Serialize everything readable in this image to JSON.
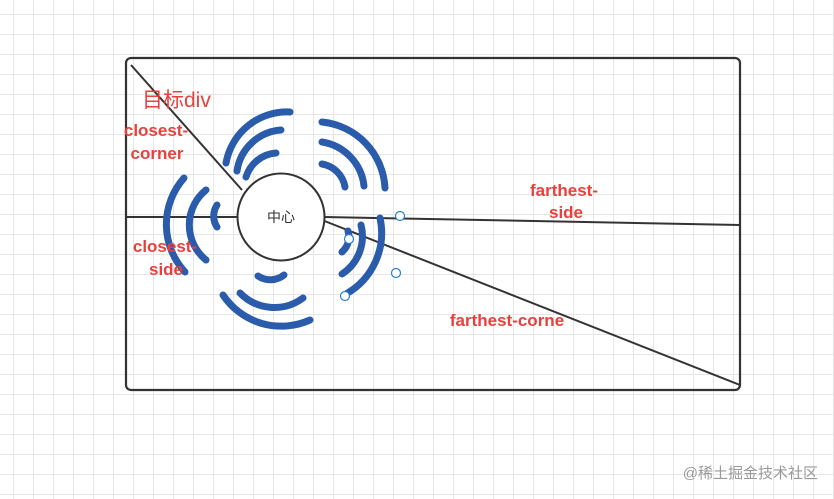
{
  "diagram": {
    "title": "目标div",
    "center_label": "中心",
    "labels": {
      "closest_corner": [
        "closest-",
        "corner"
      ],
      "closest_side": [
        "closest-",
        "side"
      ],
      "farthest_side": [
        "farthest-",
        "side"
      ],
      "farthest_corner": "farthest-corne"
    }
  },
  "watermark": "@稀土掘金技术社区",
  "colors": {
    "label": "#e8413d",
    "wave": "#2a5cab",
    "line": "#333333",
    "handle": "#2a7fd4"
  },
  "icons": {
    "wave_symbol": "radial-wave-icon"
  }
}
